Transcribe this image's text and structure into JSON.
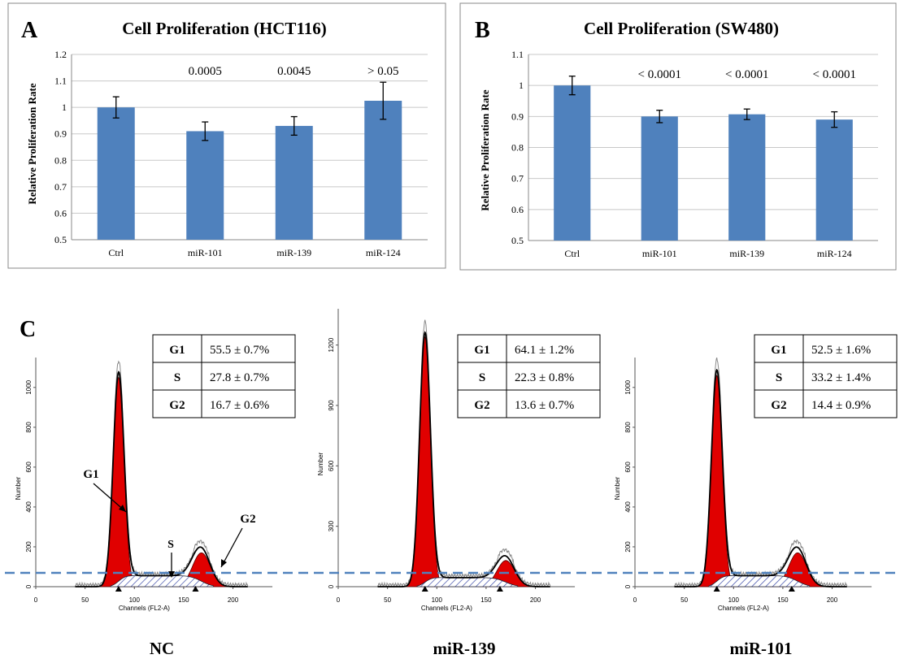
{
  "panel_a": {
    "letter": "A",
    "chart_data": {
      "type": "bar",
      "title": "Cell Proliferation (HCT116)",
      "ylabel": "Relative Proliferation  Rate",
      "categories": [
        "Ctrl",
        "miR-101",
        "miR-139",
        "miR-124"
      ],
      "values": [
        1.0,
        0.91,
        0.93,
        1.025
      ],
      "errors": [
        0.04,
        0.035,
        0.035,
        0.07
      ],
      "pvalues": [
        "",
        "0.0005",
        "0.0045",
        "> 0.05"
      ],
      "ylim": [
        0.5,
        1.2
      ],
      "yticks": [
        "0.5",
        "0.6",
        "0.7",
        "0.8",
        "0.9",
        "1",
        "1.1",
        "1.2"
      ],
      "bar_color": "#4f81bd",
      "grid": true
    }
  },
  "panel_b": {
    "letter": "B",
    "chart_data": {
      "type": "bar",
      "title": "Cell Proliferation (SW480)",
      "ylabel": "Relative Proliferation  Rate",
      "categories": [
        "Ctrl",
        "miR-101",
        "miR-139",
        "miR-124"
      ],
      "values": [
        1.0,
        0.9,
        0.907,
        0.89
      ],
      "errors": [
        0.03,
        0.02,
        0.017,
        0.025
      ],
      "pvalues": [
        "",
        "< 0.0001",
        "< 0.0001",
        "< 0.0001"
      ],
      "ylim": [
        0.5,
        1.1
      ],
      "yticks": [
        "0.5",
        "0.6",
        "0.7",
        "0.8",
        "0.9",
        "1",
        "1.1"
      ],
      "bar_color": "#4f81bd",
      "grid": true
    }
  },
  "panel_c": {
    "letter": "C",
    "xlabel": "Channels (FL2-A)",
    "ylabel": "Number",
    "baseline_color": "#4f81bd",
    "fill_color": "#e00000",
    "histograms": [
      {
        "name": "NC",
        "ylim": [
          0,
          1150
        ],
        "yticks": [
          "0",
          "200",
          "400",
          "600",
          "800",
          "1000"
        ],
        "xticks": [
          "0",
          "50",
          "100",
          "150",
          "200"
        ],
        "g1_peak": {
          "x": 84,
          "height": 1050
        },
        "g2_peak": {
          "x": 168,
          "height": 170
        },
        "s_level": 55,
        "baseline": 85,
        "table": [
          {
            "phase": "G1",
            "value": "55.5  ± 0.7%"
          },
          {
            "phase": "S",
            "value": "27.8  ± 0.7%"
          },
          {
            "phase": "G2",
            "value": "16.7  ± 0.6%"
          }
        ],
        "annotations": {
          "g1": "G1",
          "s": "S",
          "g2": "G2"
        }
      },
      {
        "name": "miR-139",
        "ylim": [
          0,
          1380
        ],
        "yticks": [
          "0",
          "300",
          "600",
          "900",
          "1200"
        ],
        "xticks": [
          "0",
          "50",
          "100",
          "150",
          "200"
        ],
        "g1_peak": {
          "x": 88,
          "height": 1240
        },
        "g2_peak": {
          "x": 170,
          "height": 130
        },
        "s_level": 45,
        "baseline": 85,
        "table": [
          {
            "phase": "G1",
            "value": "64.1  ± 1.2%"
          },
          {
            "phase": "S",
            "value": "22.3  ± 0.8%"
          },
          {
            "phase": "G2",
            "value": "13.6  ± 0.7%"
          }
        ]
      },
      {
        "name": "miR-101",
        "ylim": [
          0,
          1150
        ],
        "yticks": [
          "0",
          "200",
          "400",
          "600",
          "800",
          "1000"
        ],
        "xticks": [
          "0",
          "50",
          "100",
          "150",
          "200"
        ],
        "g1_peak": {
          "x": 83,
          "height": 1060
        },
        "g2_peak": {
          "x": 165,
          "height": 170
        },
        "s_level": 55,
        "baseline": 85,
        "table": [
          {
            "phase": "G1",
            "value": "52.5  ± 1.6%"
          },
          {
            "phase": "S",
            "value": "33.2  ± 1.4%"
          },
          {
            "phase": "G2",
            "value": "14.4  ± 0.9%"
          }
        ]
      }
    ]
  }
}
